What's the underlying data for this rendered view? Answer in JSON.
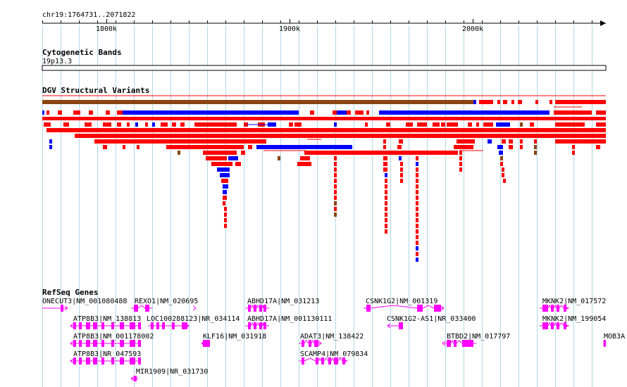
{
  "location": "chr19:1764731..2071822",
  "ruler": {
    "ticks": [
      "1800k",
      "1900k",
      "2000k"
    ]
  },
  "tracks": {
    "cytoband": {
      "title": "Cytogenetic Bands",
      "band": "19p13.3"
    },
    "dgv": {
      "title": "DGV Structural Variants"
    },
    "refseq": {
      "title": "RefSeq Genes",
      "genes": [
        "ONECUT3|NM_001080488",
        "REXO1|NM_020695",
        "ABHD17A|NM_031213",
        "CSNK1G2|NM_001319",
        "MKNK2|NM_017572",
        "ATP8B3|NM_138813",
        "LOC100288123|NR_034114",
        "ABHD17A|NM_001130111",
        "CSNK1G2-AS1|NR_033400",
        "MKNK2|NM_199054",
        "ATP8B3|NM_001178002",
        "KLF16|NM_031918",
        "ADAT3|NM_138422",
        "BTBD2|NM_017797",
        "MOB3A",
        "ATP8B3|NR_047593",
        "SCAMP4|NM_079834",
        "MIR1909|NR_031730"
      ]
    }
  },
  "colors": {
    "gain": "#ff0000",
    "loss": "#0000ff",
    "complex": "#8b4513",
    "gene": "#ff00ff",
    "grid": "#add8e6"
  }
}
